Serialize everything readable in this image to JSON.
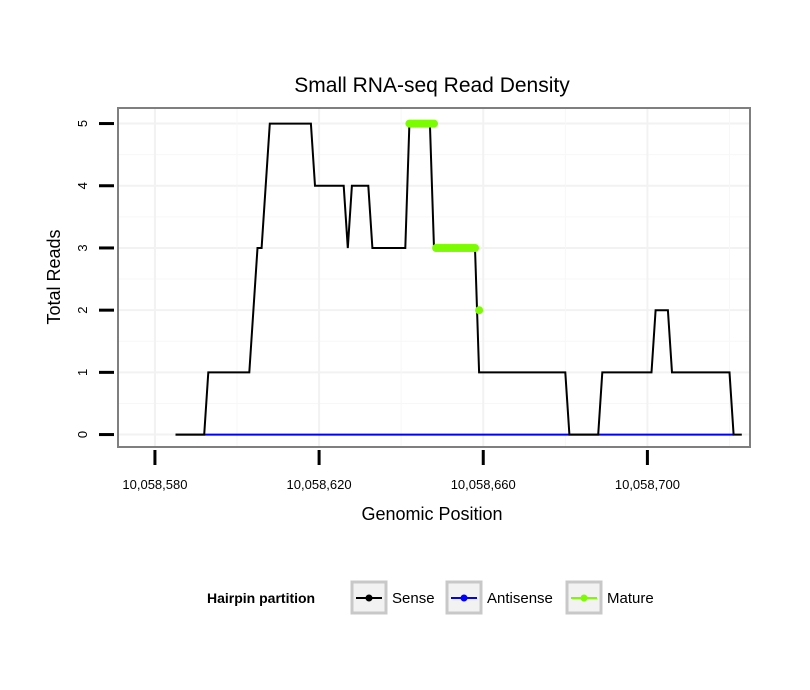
{
  "chart_data": {
    "type": "line",
    "title": "Small RNA-seq Read Density",
    "xlabel": "Genomic Position",
    "ylabel": "Total Reads",
    "xlim": [
      10058571,
      10058725
    ],
    "ylim": [
      -0.2,
      5.25
    ],
    "x_ticks": [
      10058580,
      10058620,
      10058660,
      10058700
    ],
    "x_tick_labels": [
      "10,058,580",
      "10,058,620",
      "10,058,660",
      "10,058,700"
    ],
    "y_ticks": [
      0,
      1,
      2,
      3,
      4,
      5
    ],
    "y_tick_labels": [
      "0",
      "1",
      "2",
      "3",
      "4",
      "5"
    ],
    "grid": true,
    "legend": {
      "title": "Hairpin partition",
      "placement": "bottom",
      "entries": [
        {
          "name": "Sense",
          "color": "#000000"
        },
        {
          "name": "Antisense",
          "color": "#0000ff"
        },
        {
          "name": "Mature",
          "color": "#7cfc00"
        }
      ]
    },
    "series": [
      {
        "name": "Sense",
        "color": "#000000",
        "style": "line",
        "x": [
          10058585,
          10058592,
          10058593,
          10058603,
          10058605,
          10058606,
          10058608,
          10058618,
          10058619,
          10058626,
          10058627,
          10058628,
          10058632,
          10058633,
          10058641,
          10058642,
          10058647,
          10058648,
          10058656,
          10058658,
          10058659,
          10058680,
          10058681,
          10058688,
          10058689,
          10058701,
          10058702,
          10058705,
          10058706,
          10058720,
          10058721,
          10058723
        ],
        "y": [
          0,
          0,
          1,
          1,
          3,
          3,
          5,
          5,
          4,
          4,
          3,
          4,
          4,
          3,
          3,
          5,
          5,
          3,
          3,
          3,
          1,
          1,
          0,
          0,
          1,
          1,
          2,
          2,
          1,
          1,
          0,
          0
        ]
      },
      {
        "name": "Antisense",
        "color": "#0000ff",
        "style": "line",
        "x": [
          10058585,
          10058721
        ],
        "y": [
          0,
          0
        ]
      },
      {
        "name": "Mature",
        "color": "#7cfc00",
        "style": "points",
        "x": [
          10058642,
          10058642.5,
          10058643,
          10058643.5,
          10058644,
          10058644.5,
          10058645,
          10058645.5,
          10058646,
          10058646.5,
          10058647,
          10058647.5,
          10058648,
          10058648.5,
          10058649,
          10058649.5,
          10058650,
          10058650.5,
          10058651,
          10058651.5,
          10058652,
          10058652.5,
          10058653,
          10058653.5,
          10058654,
          10058654.5,
          10058655,
          10058655.5,
          10058656,
          10058656.5,
          10058657,
          10058657.5,
          10058658,
          10058659
        ],
        "y": [
          5,
          5,
          5,
          5,
          5,
          5,
          5,
          5,
          5,
          5,
          5,
          5,
          5,
          3,
          3,
          3,
          3,
          3,
          3,
          3,
          3,
          3,
          3,
          3,
          3,
          3,
          3,
          3,
          3,
          3,
          3,
          3,
          3,
          2
        ]
      }
    ]
  }
}
